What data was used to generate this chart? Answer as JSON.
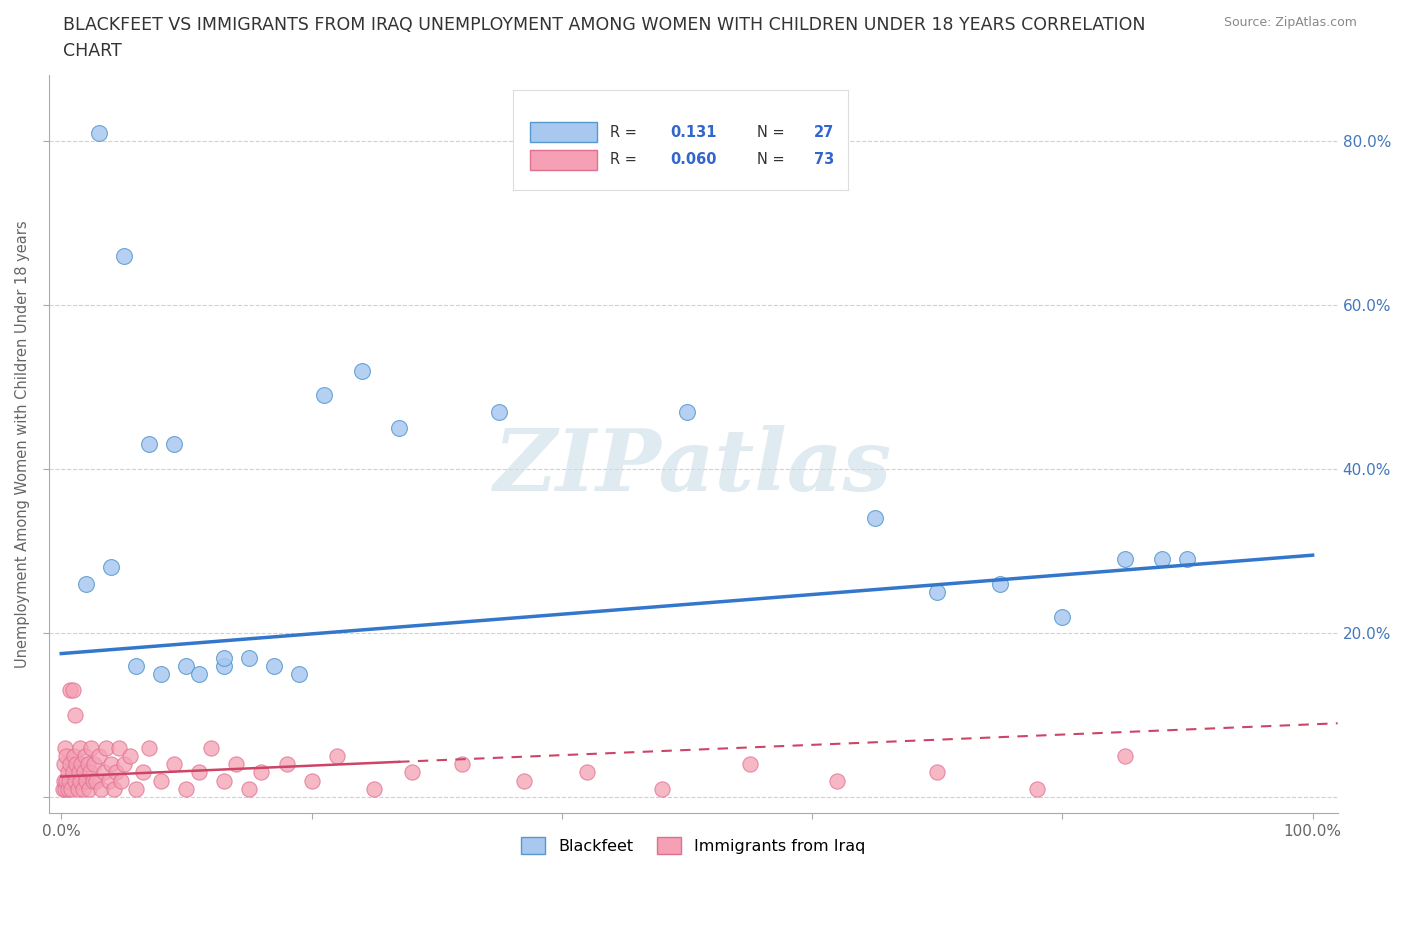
{
  "title_line1": "BLACKFEET VS IMMIGRANTS FROM IRAQ UNEMPLOYMENT AMONG WOMEN WITH CHILDREN UNDER 18 YEARS CORRELATION",
  "title_line2": "CHART",
  "source": "Source: ZipAtlas.com",
  "ylabel": "Unemployment Among Women with Children Under 18 years",
  "xlim": [
    -0.01,
    1.02
  ],
  "ylim": [
    -0.02,
    0.88
  ],
  "xticks": [
    0.0,
    0.2,
    0.4,
    0.6,
    0.8,
    1.0
  ],
  "xtick_labels": [
    "0.0%",
    "",
    "",
    "",
    "",
    "100.0%"
  ],
  "yticks": [
    0.0,
    0.2,
    0.4,
    0.6,
    0.8
  ],
  "ytick_labels": [
    "",
    "20.0%",
    "40.0%",
    "60.0%",
    "80.0%"
  ],
  "blackfeet_color": "#a8c8f0",
  "iraq_color": "#f5a0b4",
  "blackfeet_edge": "#5599cc",
  "iraq_edge": "#e07090",
  "trend_blue": "#3377cc",
  "trend_pink": "#cc4466",
  "legend_R1": "0.131",
  "legend_N1": "27",
  "legend_R2": "0.060",
  "legend_N2": "73",
  "watermark": "ZIPatlas",
  "watermark_color": "#ccdde8",
  "background_color": "#ffffff",
  "blackfeet_x": [
    0.02,
    0.04,
    0.06,
    0.08,
    0.1,
    0.13,
    0.13,
    0.15,
    0.17,
    0.19,
    0.21,
    0.24,
    0.27,
    0.35,
    0.5,
    0.65,
    0.7,
    0.75,
    0.8,
    0.85,
    0.88,
    0.9,
    0.03,
    0.05,
    0.07,
    0.09,
    0.11
  ],
  "blackfeet_y": [
    0.26,
    0.28,
    0.16,
    0.15,
    0.16,
    0.16,
    0.17,
    0.17,
    0.16,
    0.15,
    0.49,
    0.52,
    0.45,
    0.47,
    0.47,
    0.34,
    0.25,
    0.26,
    0.22,
    0.29,
    0.29,
    0.29,
    0.81,
    0.66,
    0.43,
    0.43,
    0.15
  ],
  "iraq_x": [
    0.001,
    0.002,
    0.002,
    0.003,
    0.003,
    0.004,
    0.004,
    0.005,
    0.005,
    0.006,
    0.007,
    0.008,
    0.009,
    0.01,
    0.011,
    0.012,
    0.013,
    0.014,
    0.015,
    0.015,
    0.016,
    0.017,
    0.018,
    0.019,
    0.02,
    0.021,
    0.022,
    0.023,
    0.024,
    0.025,
    0.026,
    0.028,
    0.03,
    0.032,
    0.034,
    0.036,
    0.038,
    0.04,
    0.042,
    0.044,
    0.046,
    0.048,
    0.05,
    0.055,
    0.06,
    0.065,
    0.07,
    0.08,
    0.09,
    0.1,
    0.11,
    0.12,
    0.13,
    0.14,
    0.15,
    0.16,
    0.18,
    0.2,
    0.22,
    0.25,
    0.28,
    0.32,
    0.37,
    0.42,
    0.48,
    0.55,
    0.62,
    0.7,
    0.78,
    0.85,
    0.007,
    0.009,
    0.011
  ],
  "iraq_y": [
    0.01,
    0.02,
    0.04,
    0.01,
    0.06,
    0.02,
    0.05,
    0.01,
    0.03,
    0.02,
    0.04,
    0.01,
    0.03,
    0.05,
    0.02,
    0.04,
    0.01,
    0.03,
    0.06,
    0.02,
    0.04,
    0.01,
    0.03,
    0.05,
    0.02,
    0.04,
    0.01,
    0.03,
    0.06,
    0.02,
    0.04,
    0.02,
    0.05,
    0.01,
    0.03,
    0.06,
    0.02,
    0.04,
    0.01,
    0.03,
    0.06,
    0.02,
    0.04,
    0.05,
    0.01,
    0.03,
    0.06,
    0.02,
    0.04,
    0.01,
    0.03,
    0.06,
    0.02,
    0.04,
    0.01,
    0.03,
    0.04,
    0.02,
    0.05,
    0.01,
    0.03,
    0.04,
    0.02,
    0.03,
    0.01,
    0.04,
    0.02,
    0.03,
    0.01,
    0.05,
    0.13,
    0.13,
    0.1
  ],
  "figsize": [
    14.06,
    9.3
  ],
  "dpi": 100
}
